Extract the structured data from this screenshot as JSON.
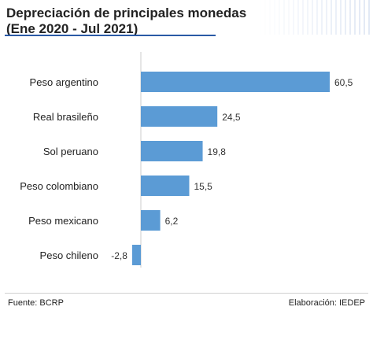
{
  "header": {
    "title_line1": "Depreciación de principales monedas",
    "title_line2": "(Ene 2020 - Jul 2021)"
  },
  "footer": {
    "source": "Fuente: BCRP",
    "credit": "Elaboración: IEDEP"
  },
  "colors": {
    "bar": "#5b9bd5",
    "axis": "#cccccc",
    "title_rule": "#2a5aa6"
  },
  "chart_data": {
    "type": "bar",
    "orientation": "horizontal",
    "categories": [
      "Peso argentino",
      "Real brasileño",
      "Sol peruano",
      "Peso colombiano",
      "Peso mexicano",
      "Peso chileno"
    ],
    "values": [
      60.5,
      24.5,
      19.8,
      15.5,
      6.2,
      -2.8
    ],
    "value_labels": [
      "60,5",
      "24,5",
      "19,8",
      "15,5",
      "6,2",
      "-2,8"
    ],
    "title": "Depreciación de principales monedas (Ene 2020 - Jul 2021)",
    "xlabel": "",
    "ylabel": "",
    "xlim": [
      -2.8,
      60.5
    ],
    "grid": false,
    "legend": "none"
  }
}
